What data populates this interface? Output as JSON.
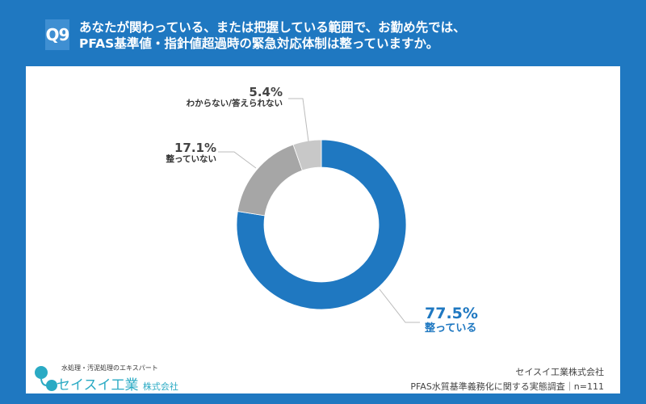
{
  "header": {
    "badge": "Q9",
    "question_line1": "あなたが関わっている、または把握している範囲で、お勤め先では、",
    "question_line2": "PFAS基準値・指針値超過時の緊急対応体制は整っていますか。"
  },
  "chart_data": {
    "type": "pie",
    "donut": true,
    "start": "top",
    "direction": "clockwise",
    "categories": [
      "整っている",
      "整っていない",
      "わからない/答えられない"
    ],
    "values": [
      77.5,
      17.1,
      5.4
    ],
    "value_labels": [
      "77.5%",
      "17.1%",
      "5.4%"
    ],
    "colors": [
      "#1f78c1",
      "#a6a6a6",
      "#c8c8c8"
    ]
  },
  "footer": {
    "logo_tagline": "水処理・汚泥処理のエキスパート",
    "logo_name": "セイスイ工業",
    "logo_suffix": "株式会社",
    "source_company": "セイスイ工業株式会社",
    "source_survey": "PFAS水質基準義務化に関する実態調査｜n=111"
  }
}
